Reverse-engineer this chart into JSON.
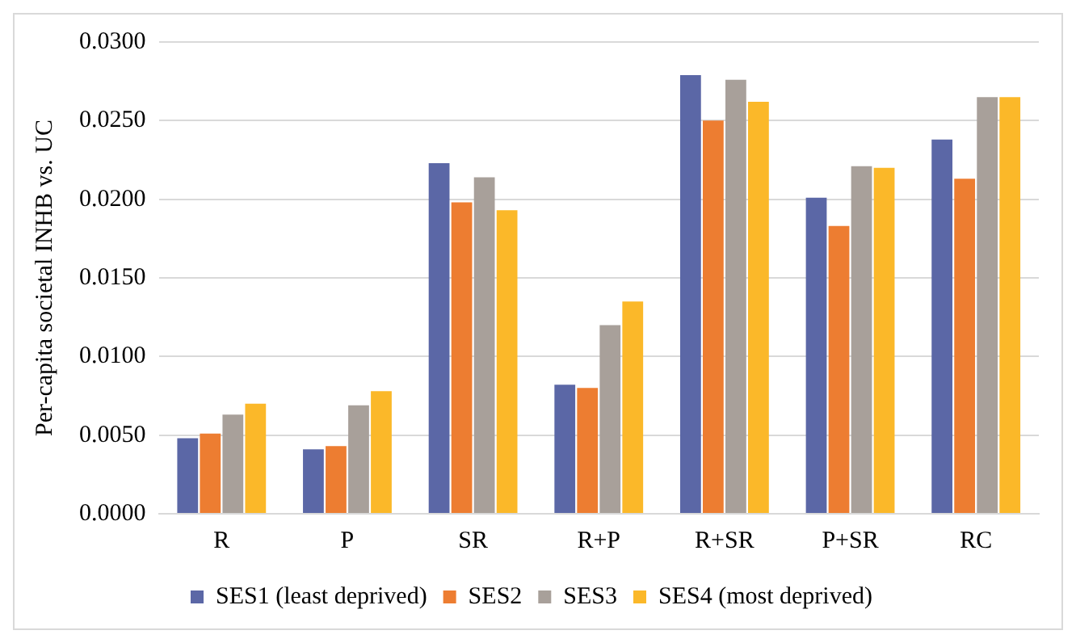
{
  "chart_data": {
    "type": "bar",
    "ylabel": "Per-capita societal INHB vs. UC",
    "categories": [
      "R",
      "P",
      "SR",
      "R+P",
      "R+SR",
      "P+SR",
      "RC"
    ],
    "series": [
      {
        "name": "SES1 (least deprived)",
        "color": "#5b67a6",
        "values": [
          0.0048,
          0.0041,
          0.0223,
          0.0082,
          0.0279,
          0.0201,
          0.0238
        ]
      },
      {
        "name": "SES2",
        "color": "#ed7d31",
        "values": [
          0.0051,
          0.0043,
          0.0198,
          0.008,
          0.025,
          0.0183,
          0.0213
        ]
      },
      {
        "name": "SES3",
        "color": "#a8a09a",
        "values": [
          0.0063,
          0.0069,
          0.0214,
          0.012,
          0.0276,
          0.0221,
          0.0265
        ]
      },
      {
        "name": "SES4 (most deprived)",
        "color": "#fbb829",
        "values": [
          0.007,
          0.0078,
          0.0193,
          0.0135,
          0.0262,
          0.022,
          0.0265
        ]
      }
    ],
    "ylim": [
      0,
      0.03
    ],
    "yticks": [
      {
        "value": 0,
        "label": "0.0000"
      },
      {
        "value": 0.005,
        "label": "0.0050"
      },
      {
        "value": 0.01,
        "label": "0.0100"
      },
      {
        "value": 0.015,
        "label": "0.0150"
      },
      {
        "value": 0.02,
        "label": "0.0200"
      },
      {
        "value": 0.025,
        "label": "0.0250"
      },
      {
        "value": 0.03,
        "label": "0.0300"
      }
    ],
    "grid": "y",
    "legend": "bottom"
  }
}
